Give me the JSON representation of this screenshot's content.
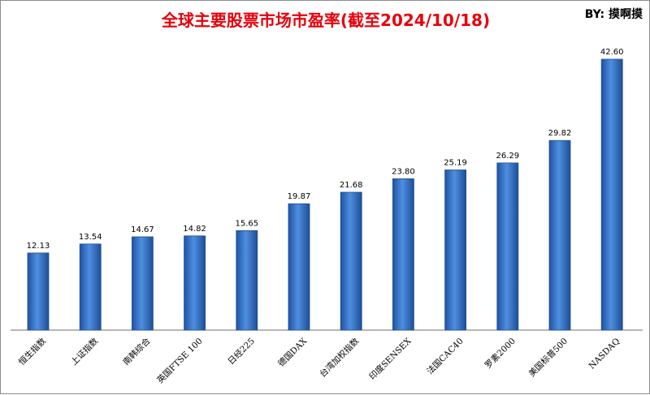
{
  "header": {
    "title": "全球主要股票市场市盈率(截至2024/10/18)",
    "byline": "BY: 摸啊摸"
  },
  "chart_data": {
    "type": "bar",
    "title": "全球主要股票市场市盈率(截至2024/10/18)",
    "xlabel": "",
    "ylabel": "",
    "categories": [
      "恒生指数",
      "上证指数",
      "南韩综合",
      "英国FTSE 100",
      "日经225",
      "德国DAX",
      "台湾加权指数",
      "印度SENSEX",
      "法国CAC40",
      "罗素2000",
      "美国标普500",
      "NASDAQ"
    ],
    "values": [
      12.13,
      13.54,
      14.67,
      14.82,
      15.65,
      19.87,
      21.68,
      23.8,
      25.19,
      26.29,
      29.82,
      42.6
    ],
    "value_labels": [
      "12.13",
      "13.54",
      "14.67",
      "14.82",
      "15.65",
      "19.87",
      "21.68",
      "23.80",
      "25.19",
      "26.29",
      "29.82",
      "42.60"
    ],
    "ylim": [
      0,
      45
    ],
    "grid": false,
    "legend": "none",
    "bar_color": "#3a78c9",
    "bar_edge_color": "#1f4f8f"
  }
}
